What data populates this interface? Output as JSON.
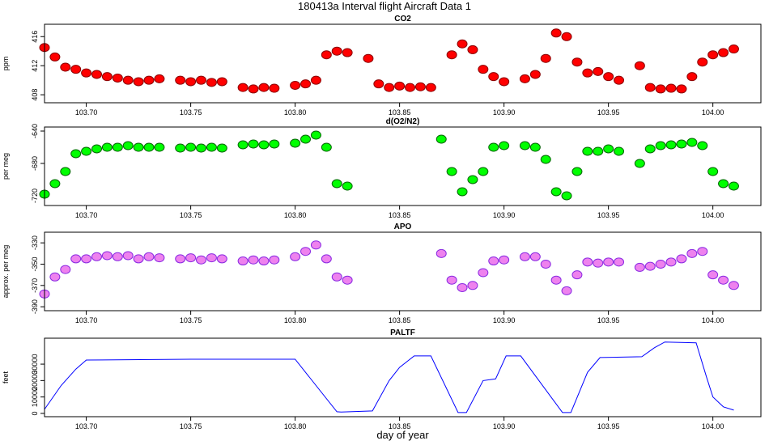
{
  "title": "180413a   Interval flight Aircraft Data 1",
  "chart_data": [
    {
      "type": "scatter",
      "title": "CO2",
      "ylabel": "ppm",
      "color": "#ff0000",
      "edge": "#8b0000",
      "xlim": [
        103.68,
        104.023
      ],
      "ylim": [
        406.9,
        417.7
      ],
      "yticks": [
        408,
        412,
        416
      ],
      "xticks": [
        {
          "value": 103.7,
          "label": "103.70"
        },
        103.75,
        {
          "value": 103.8,
          "label": "103.80"
        },
        103.85,
        {
          "value": 103.9,
          "label": "103.90"
        },
        103.95,
        {
          "value": 104.0,
          "label": "104.00"
        }
      ],
      "x": [
        103.68,
        103.685,
        103.69,
        103.695,
        103.7,
        103.705,
        103.71,
        103.715,
        103.72,
        103.725,
        103.73,
        103.735,
        103.74,
        103.745,
        103.75,
        103.755,
        103.76,
        103.765,
        103.77,
        103.775,
        103.78,
        103.785,
        103.79,
        103.795,
        103.8,
        103.805,
        103.81,
        103.815,
        103.82,
        103.825,
        103.83,
        103.835,
        103.84,
        103.845,
        103.85,
        103.855,
        103.86,
        103.865,
        103.87,
        103.875,
        103.88,
        103.885,
        103.89,
        103.895,
        103.9,
        103.905,
        103.91,
        103.915,
        103.92,
        103.925,
        103.93,
        103.935,
        103.94,
        103.945,
        103.95,
        103.955,
        103.96,
        103.965,
        103.97,
        103.975,
        103.98,
        103.985,
        103.99,
        103.995,
        104.0,
        104.005,
        104.01
      ],
      "values": [
        414.5,
        413.2,
        411.8,
        411.5,
        411.0,
        410.8,
        410.5,
        410.3,
        410.0,
        409.8,
        410.0,
        410.2,
        null,
        410.0,
        409.8,
        410.0,
        409.7,
        409.8,
        null,
        409.0,
        408.8,
        409.0,
        408.9,
        null,
        409.3,
        409.5,
        410.0,
        413.5,
        414.0,
        413.8,
        null,
        413.0,
        409.5,
        409.0,
        409.2,
        409.0,
        409.1,
        409.0,
        null,
        413.5,
        415.0,
        414.2,
        411.5,
        410.5,
        409.8,
        null,
        410.2,
        410.8,
        413.0,
        416.5,
        416.0,
        412.5,
        411.0,
        411.2,
        410.5,
        410.0,
        null,
        412.0,
        409.0,
        408.8,
        408.9,
        408.8,
        410.5,
        412.5,
        413.5,
        413.8,
        414.3
      ]
    },
    {
      "type": "scatter",
      "title": "d(O2/N2)",
      "ylabel": "per meg",
      "color": "#00ff00",
      "edge": "#006400",
      "xlim": [
        103.68,
        104.023
      ],
      "ylim": [
        -732,
        -635
      ],
      "yticks": [
        -640,
        -680,
        -720
      ],
      "xticks": [
        {
          "value": 103.7,
          "label": "103.70"
        },
        103.75,
        {
          "value": 103.8,
          "label": "103.80"
        },
        103.85,
        {
          "value": 103.9,
          "label": "103.90"
        },
        103.95,
        {
          "value": 104.0,
          "label": "104.00"
        }
      ],
      "x": [
        103.68,
        103.685,
        103.69,
        103.695,
        103.7,
        103.705,
        103.71,
        103.715,
        103.72,
        103.725,
        103.73,
        103.735,
        103.74,
        103.745,
        103.75,
        103.755,
        103.76,
        103.765,
        103.77,
        103.775,
        103.78,
        103.785,
        103.79,
        103.795,
        103.8,
        103.805,
        103.81,
        103.815,
        103.82,
        103.825,
        103.83,
        103.835,
        103.84,
        103.845,
        103.85,
        103.855,
        103.86,
        103.865,
        103.87,
        103.875,
        103.88,
        103.885,
        103.89,
        103.895,
        103.9,
        103.905,
        103.91,
        103.915,
        103.92,
        103.925,
        103.93,
        103.935,
        103.94,
        103.945,
        103.95,
        103.955,
        103.96,
        103.965,
        103.97,
        103.975,
        103.98,
        103.985,
        103.99,
        103.995,
        104.0,
        104.005,
        104.01
      ],
      "values": [
        -718,
        -705,
        -690,
        -668,
        -665,
        -662,
        -660,
        -660,
        -658,
        -660,
        -660,
        -660,
        null,
        -661,
        -660,
        -661,
        -660,
        -661,
        null,
        -657,
        -656,
        -657,
        -656,
        null,
        -655,
        -650,
        -645,
        -660,
        -705,
        -708,
        null,
        null,
        null,
        null,
        null,
        null,
        null,
        null,
        -650,
        -690,
        -715,
        -700,
        -690,
        -660,
        -658,
        null,
        -658,
        -660,
        -675,
        -715,
        -720,
        -690,
        -665,
        -665,
        -662,
        -665,
        null,
        -680,
        -662,
        -658,
        -657,
        -656,
        -654,
        -658,
        -690,
        -705,
        -708
      ]
    },
    {
      "type": "scatter",
      "title": "APO",
      "ylabel": "approx. per meg",
      "color": "#ee82ee",
      "edge": "#8a2be2",
      "xlim": [
        103.68,
        104.023
      ],
      "ylim": [
        -393.7,
        -320
      ],
      "yticks": [
        -330,
        -350,
        -370,
        -390
      ],
      "xticks": [
        {
          "value": 103.7,
          "label": "103.70"
        },
        103.75,
        {
          "value": 103.8,
          "label": "103.80"
        },
        103.85,
        {
          "value": 103.9,
          "label": "103.90"
        },
        103.95,
        {
          "value": 104.0,
          "label": "104.00"
        }
      ],
      "x": [
        103.68,
        103.685,
        103.69,
        103.695,
        103.7,
        103.705,
        103.71,
        103.715,
        103.72,
        103.725,
        103.73,
        103.735,
        103.74,
        103.745,
        103.75,
        103.755,
        103.76,
        103.765,
        103.77,
        103.775,
        103.78,
        103.785,
        103.79,
        103.795,
        103.8,
        103.805,
        103.81,
        103.815,
        103.82,
        103.825,
        103.83,
        103.835,
        103.84,
        103.845,
        103.85,
        103.855,
        103.86,
        103.865,
        103.87,
        103.875,
        103.88,
        103.885,
        103.89,
        103.895,
        103.9,
        103.905,
        103.91,
        103.915,
        103.92,
        103.925,
        103.93,
        103.935,
        103.94,
        103.945,
        103.95,
        103.955,
        103.96,
        103.965,
        103.97,
        103.975,
        103.98,
        103.985,
        103.99,
        103.995,
        104.0,
        104.005,
        104.01
      ],
      "values": [
        -378,
        -362,
        -355,
        -345,
        -345,
        -343,
        -342,
        -343,
        -342,
        -345,
        -343,
        -344,
        null,
        -345,
        -344,
        -346,
        -344,
        -345,
        null,
        -347,
        -346,
        -347,
        -346,
        null,
        -343,
        -338,
        -332,
        -345,
        -362,
        -365,
        null,
        null,
        null,
        null,
        null,
        null,
        null,
        null,
        -340,
        -365,
        -372,
        -370,
        -358,
        -347,
        -346,
        null,
        -343,
        -343,
        -350,
        -365,
        -375,
        -360,
        -348,
        -349,
        -348,
        -348,
        null,
        -353,
        -352,
        -350,
        -348,
        -345,
        -340,
        -338,
        -360,
        -365,
        -370
      ]
    },
    {
      "type": "line",
      "title": "PALTF",
      "ylabel": "feet",
      "xlabel": "day of year",
      "color": "#0000ff",
      "xlim": [
        103.68,
        104.023
      ],
      "ylim": [
        -2000,
        45800
      ],
      "yticks": [
        0,
        10000,
        20000,
        30000
      ],
      "xticks": [
        {
          "value": 103.7,
          "label": "103.70"
        },
        103.75,
        {
          "value": 103.8,
          "label": "103.80"
        },
        103.85,
        {
          "value": 103.9,
          "label": "103.90"
        },
        103.95,
        {
          "value": 104.0,
          "label": "104.00"
        }
      ],
      "x": [
        103.68,
        103.688,
        103.695,
        103.7,
        103.75,
        103.8,
        103.82,
        103.822,
        103.837,
        103.845,
        103.85,
        103.857,
        103.865,
        103.878,
        103.882,
        103.89,
        103.896,
        103.901,
        103.908,
        103.928,
        103.932,
        103.94,
        103.946,
        103.966,
        103.972,
        103.977,
        103.992,
        103.997,
        104.0,
        104.005,
        104.01
      ],
      "values": [
        2500,
        17000,
        27000,
        32500,
        33000,
        33000,
        1000,
        800,
        1500,
        20000,
        28000,
        35000,
        35000,
        500,
        500,
        20000,
        21000,
        35000,
        35000,
        500,
        500,
        25000,
        34000,
        34500,
        40000,
        43500,
        43000,
        22000,
        10000,
        4000,
        2000
      ]
    }
  ]
}
